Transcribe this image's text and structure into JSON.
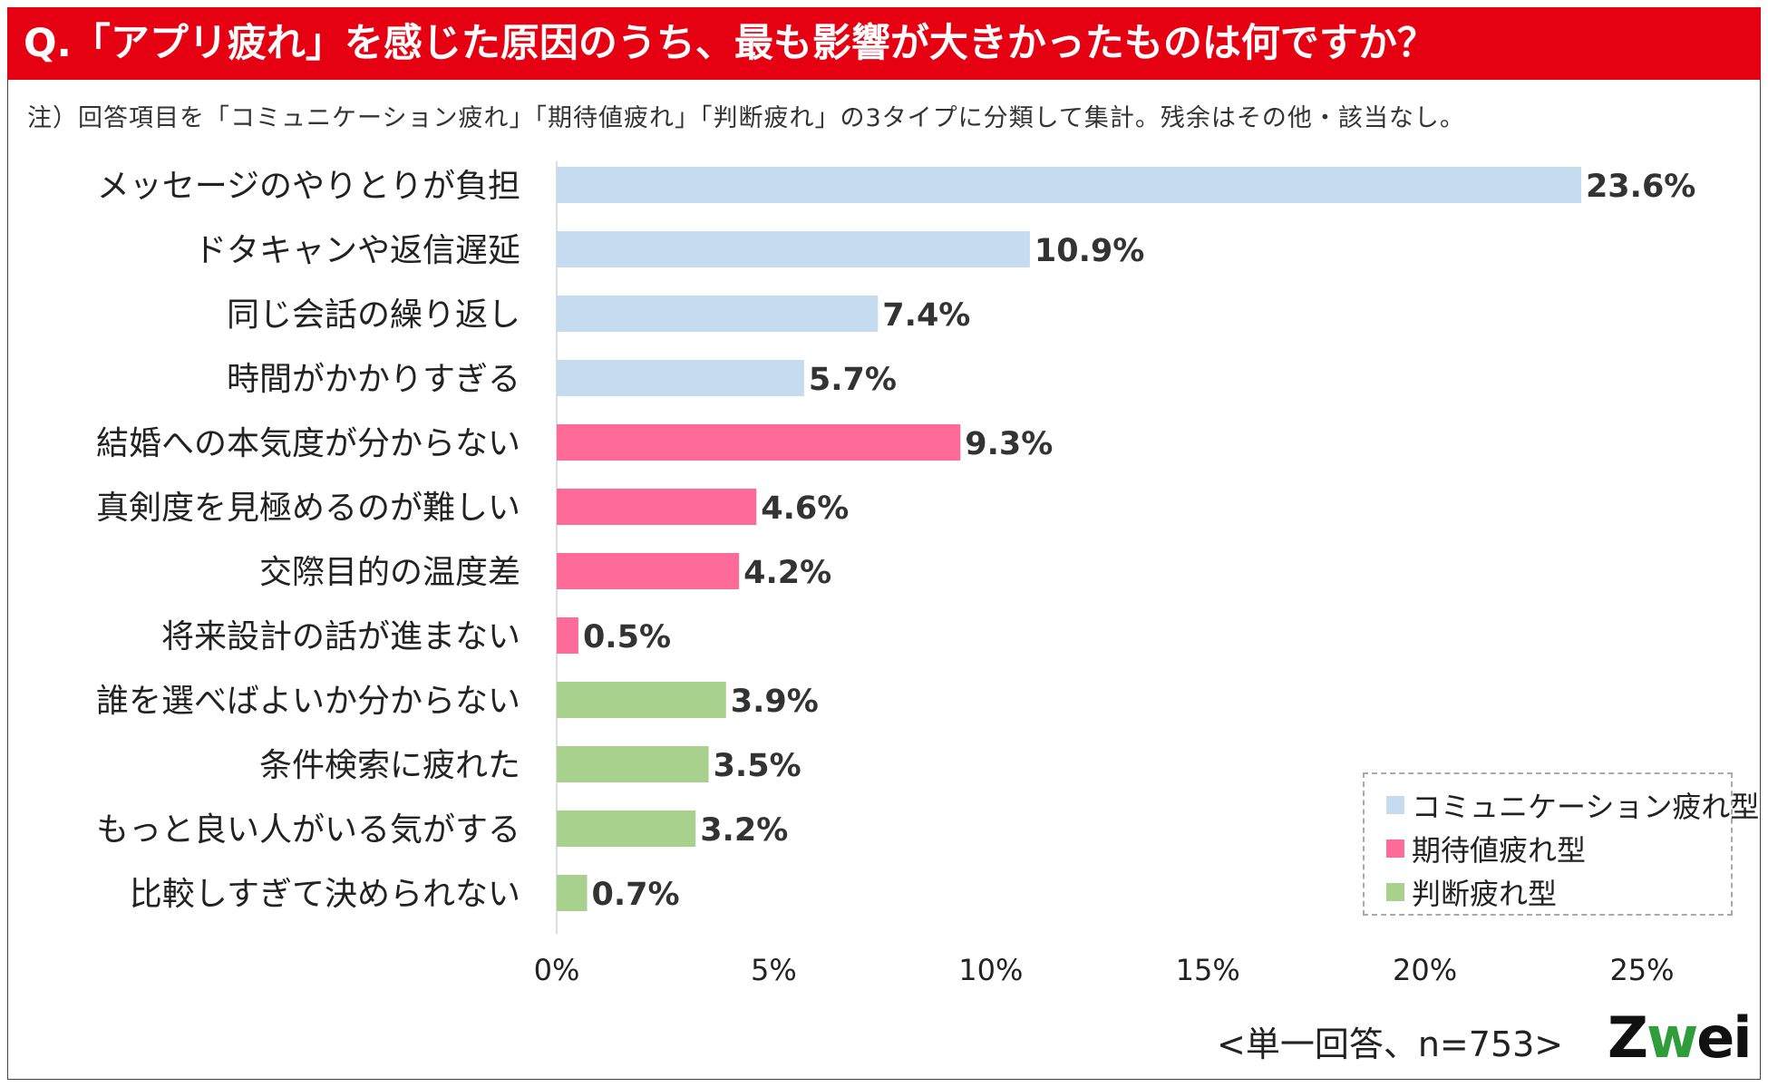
{
  "title": "Q.「アプリ疲れ」を感じた原因のうち、最も影響が大きかったものは何ですか？",
  "note": "注）回答項目を「コミュニケーション疲れ」「期待値疲れ」「判断疲れ」の3タイプに分類して集計。残余はその他・該当なし。",
  "footer_note": "<単一回答、n=753>",
  "logo": {
    "part1": "Z",
    "part2": "w",
    "part3": "ei"
  },
  "colors": {
    "title_bar": "#e50012",
    "communication": "#c5dbf0",
    "expectation": "#ff6b98",
    "judgment": "#a8d18d"
  },
  "chart_data": {
    "type": "bar",
    "orientation": "horizontal",
    "categories": [
      "メッセージのやりとりが負担",
      "ドタキャンや返信遅延",
      "同じ会話の繰り返し",
      "時間がかかりすぎる",
      "結婚への本気度が分からない",
      "真剣度を見極めるのが難しい",
      "交際目的の温度差",
      "将来設計の話が進まない",
      "誰を選べばよいか分からない",
      "条件検索に疲れた",
      "もっと良い人がいる気がする",
      "比較しすぎて決められない"
    ],
    "values": [
      23.6,
      10.9,
      7.4,
      5.7,
      9.3,
      4.6,
      4.2,
      0.5,
      3.9,
      3.5,
      3.2,
      0.7
    ],
    "value_labels": [
      "23.6%",
      "10.9%",
      "7.4%",
      "5.7%",
      "9.3%",
      "4.6%",
      "4.2%",
      "0.5%",
      "3.9%",
      "3.5%",
      "3.2%",
      "0.7%"
    ],
    "groups": [
      0,
      0,
      0,
      0,
      1,
      1,
      1,
      1,
      2,
      2,
      2,
      2
    ],
    "series": [
      {
        "name": "コミュニケーション疲れ型",
        "color": "#c5dbf0"
      },
      {
        "name": "期待値疲れ型",
        "color": "#ff6b98"
      },
      {
        "name": "判断疲れ型",
        "color": "#a8d18d"
      }
    ],
    "xlim": [
      0,
      25
    ],
    "xticks": [
      "0%",
      "5%",
      "10%",
      "15%",
      "20%",
      "25%"
    ],
    "grid": false,
    "legend_position": "bottom-right"
  }
}
